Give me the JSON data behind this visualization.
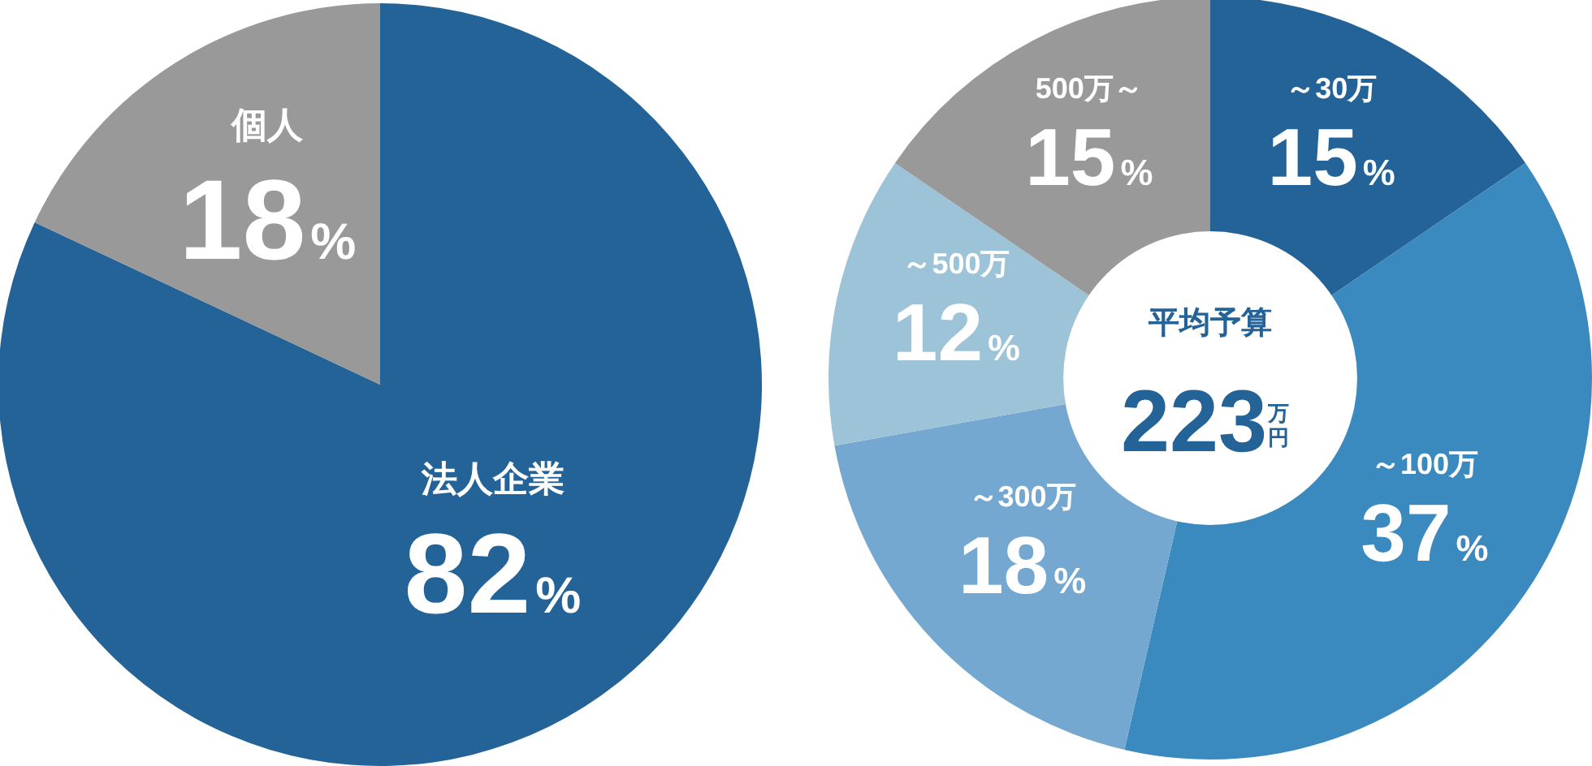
{
  "chart_data": [
    {
      "type": "pie",
      "categories": [
        "法人企業",
        "個人"
      ],
      "values": [
        82,
        18
      ],
      "colors": [
        "#246397",
        "#999999"
      ],
      "value_labels": [
        "82%",
        "18%"
      ]
    },
    {
      "type": "donut",
      "categories": [
        "～30万",
        "～100万",
        "～300万",
        "～500万",
        "500万～"
      ],
      "values": [
        15,
        37,
        18,
        12,
        15
      ],
      "colors": [
        "#246397",
        "#3a8abf",
        "#74a8d0",
        "#9cc3d8",
        "#999999"
      ],
      "value_labels": [
        "15%",
        "37%",
        "18%",
        "12%",
        "15%"
      ],
      "annotations": [
        "平均予算",
        "223",
        "万円"
      ]
    }
  ]
}
